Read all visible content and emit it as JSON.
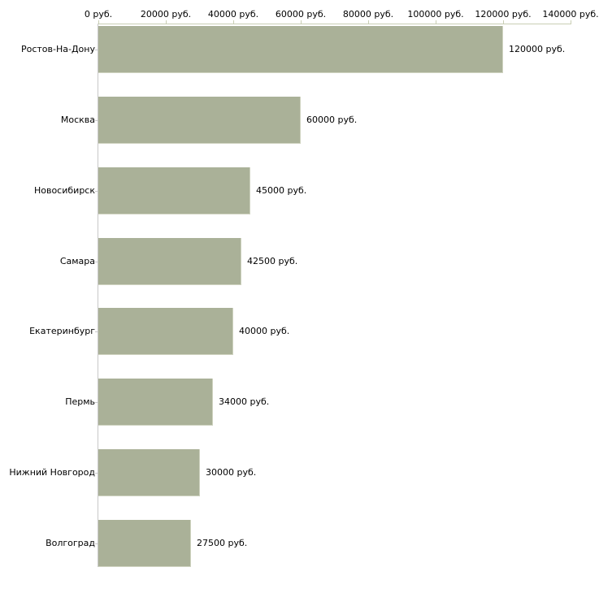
{
  "chart_data": {
    "type": "bar",
    "orientation": "horizontal",
    "title": "",
    "xlabel": "",
    "ylabel": "",
    "xlim": [
      0,
      140000
    ],
    "x_tick_step": 20000,
    "x_tick_values": [
      0,
      20000,
      40000,
      60000,
      80000,
      100000,
      120000,
      140000
    ],
    "x_tick_labels": [
      "0 руб.",
      "20000 руб.",
      "40000 руб.",
      "60000 руб.",
      "80000 руб.",
      "100000 руб.",
      "120000 руб.",
      "140000 руб."
    ],
    "categories": [
      "Ростов-На-Дону",
      "Москва",
      "Новосибирск",
      "Самара",
      "Екатеринбург",
      "Пермь",
      "Нижний Новгород",
      "Волгоград"
    ],
    "values": [
      120000,
      60000,
      45000,
      42500,
      40000,
      34000,
      30000,
      27500
    ],
    "bar_value_labels": [
      "120000 руб.",
      "60000 руб.",
      "45000 руб.",
      "42500 руб.",
      "40000 руб.",
      "34000 руб.",
      "30000 руб.",
      "27500 руб."
    ],
    "unit": "руб.",
    "grid": false,
    "legend": null,
    "axis_position": "top",
    "colors": {
      "bar_fill": "#aab198",
      "bar_edge": "#cfd3c0",
      "axis_line": "#c9ceb4",
      "y_axis_line": "#c8c8c8",
      "category_tick": "#c8c8c8",
      "text": "#000000",
      "background": "#ffffff"
    }
  }
}
